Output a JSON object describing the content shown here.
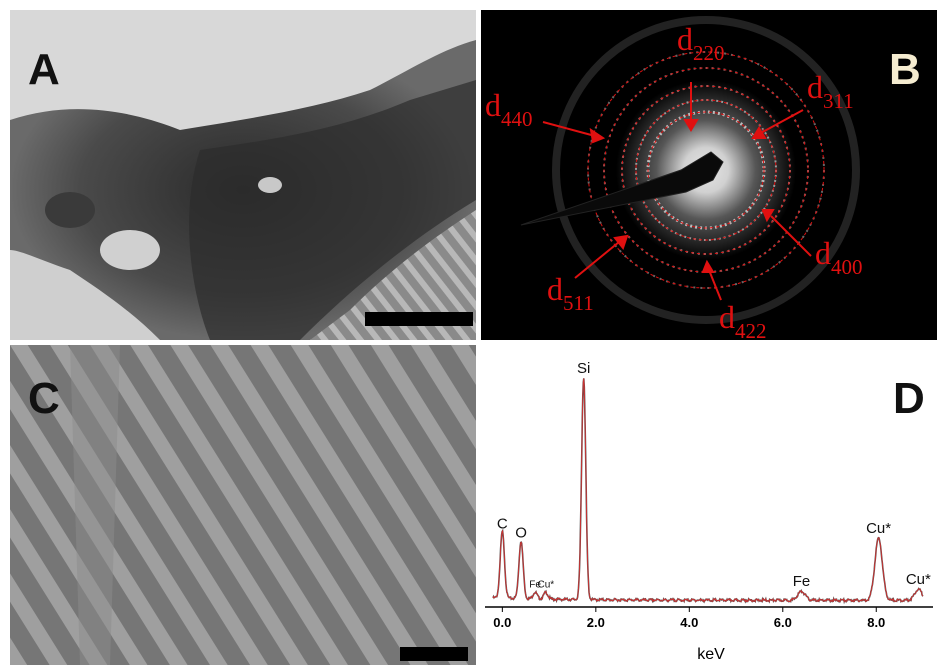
{
  "panels": {
    "A": {
      "label": "A"
    },
    "B": {
      "label": "B"
    },
    "C": {
      "label": "C"
    },
    "D": {
      "label": "D"
    }
  },
  "diffraction_labels": [
    {
      "base": "d",
      "sub": "220"
    },
    {
      "base": "d",
      "sub": "311"
    },
    {
      "base": "d",
      "sub": "440"
    },
    {
      "base": "d",
      "sub": "400"
    },
    {
      "base": "d",
      "sub": "511"
    },
    {
      "base": "d",
      "sub": "422"
    }
  ],
  "chart_data": {
    "type": "line",
    "xlabel": "keV",
    "xlim": [
      -0.2,
      9.0
    ],
    "x_ticks": [
      "0.0",
      "2.0",
      "4.0",
      "6.0",
      "8.0"
    ],
    "peaks": [
      {
        "label": "C",
        "x": 0.0,
        "height": 0.3
      },
      {
        "label": "O",
        "x": 0.4,
        "height": 0.26
      },
      {
        "label": "Fe",
        "x": 0.7,
        "height": 0.03
      },
      {
        "label": "Cu*",
        "x": 0.93,
        "height": 0.03
      },
      {
        "label": "Si",
        "x": 1.74,
        "height": 1.0
      },
      {
        "label": "Fe",
        "x": 6.4,
        "height": 0.04
      },
      {
        "label": "Cu*",
        "x": 8.05,
        "height": 0.28
      },
      {
        "label": "Cu*",
        "x": 8.9,
        "height": 0.05
      }
    ]
  }
}
